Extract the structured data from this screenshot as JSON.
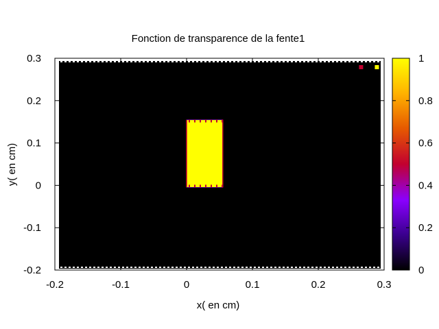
{
  "chart_data": {
    "type": "heatmap",
    "title": "Fonction de transparence de la fente1",
    "xlabel": "x( en cm)",
    "ylabel": "y( en cm)",
    "xlim": [
      -0.2,
      0.3
    ],
    "ylim": [
      -0.2,
      0.3
    ],
    "x_ticks": [
      -0.2,
      -0.1,
      0,
      0.1,
      0.2,
      0.3
    ],
    "x_tick_labels": [
      "-0.2",
      "-0.1",
      "0",
      "0.1",
      "0.2",
      "0.3"
    ],
    "y_ticks": [
      -0.2,
      -0.1,
      0,
      0.1,
      0.2,
      0.3
    ],
    "y_tick_labels": [
      "-0.2",
      "-0.1",
      "0",
      "0.1",
      "0.2",
      "0.3"
    ],
    "background_value": 0,
    "slit": {
      "x": [
        0,
        0.055
      ],
      "y": [
        -0.005,
        0.155
      ],
      "value": 1
    },
    "colorbar": {
      "range": [
        0,
        1
      ],
      "ticks": [
        0,
        0.2,
        0.4,
        0.6,
        0.8,
        1
      ],
      "tick_labels": [
        "0",
        "0.2",
        "0.4",
        "0.6",
        "0.8",
        "1"
      ],
      "palette": [
        "#000000",
        "#3b0090",
        "#8a00ff",
        "#c2002f",
        "#e65a00",
        "#ffb000",
        "#ffff00"
      ]
    },
    "grid": false,
    "legend": "none",
    "corner_markers": [
      {
        "x": 0.265,
        "y": 0.279,
        "value": 0.6
      },
      {
        "x": 0.289,
        "y": 0.279,
        "value": 1
      }
    ]
  }
}
